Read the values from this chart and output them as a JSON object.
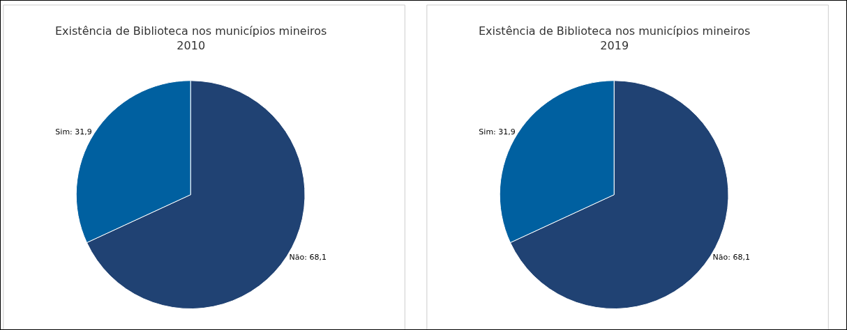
{
  "chart_data": [
    {
      "type": "pie",
      "title": "Existência de Biblioteca nos municípios mineiros\n2010",
      "categories": [
        "Não",
        "Sim"
      ],
      "values": [
        68.1,
        31.9
      ],
      "colors": [
        "#204273",
        "#0060a0"
      ],
      "value_labels": [
        "68,1",
        "31,9"
      ]
    },
    {
      "type": "pie",
      "title": "Existência de Biblioteca nos municípios mineiros\n2019",
      "categories": [
        "Não",
        "Sim"
      ],
      "values": [
        68.1,
        31.9
      ],
      "colors": [
        "#204273",
        "#0060a0"
      ],
      "value_labels": [
        "68,1",
        "31,9"
      ]
    }
  ]
}
